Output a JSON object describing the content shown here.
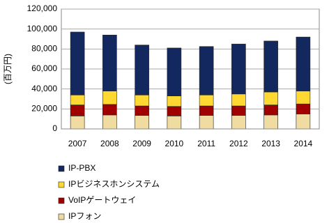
{
  "chart_data": {
    "type": "stacked-bar",
    "y_label": "(百万円)",
    "categories": [
      "2007",
      "2008",
      "2009",
      "2010",
      "2011",
      "2012",
      "2013",
      "2014"
    ],
    "series": [
      {
        "name": "IPフォン",
        "color": "#f0dca0",
        "values": [
          13000,
          14000,
          13500,
          13000,
          13500,
          13500,
          14000,
          15000
        ]
      },
      {
        "name": "VoIPゲートウェイ",
        "color": "#a00000",
        "values": [
          11000,
          10500,
          9500,
          9500,
          9500,
          9500,
          10000,
          10000
        ]
      },
      {
        "name": "IPビジネスホンシステム",
        "color": "#ffd932",
        "values": [
          10000,
          13500,
          11000,
          10500,
          11000,
          12000,
          13000,
          13000
        ]
      },
      {
        "name": "IP-PBX",
        "color": "#142860",
        "values": [
          63000,
          56000,
          50000,
          48000,
          48500,
          50000,
          51000,
          54000
        ]
      }
    ],
    "ylim": [
      0,
      120000
    ],
    "yticks": [
      0,
      {
        "value": 20000,
        "label": "20,000"
      },
      {
        "value": 40000,
        "label": "40,000"
      },
      {
        "value": 60000,
        "label": "60,000"
      },
      {
        "value": 80000,
        "label": "80,000"
      },
      {
        "value": 100000,
        "label": "100,000"
      },
      {
        "value": 120000,
        "label": "120,000"
      }
    ],
    "grid": true
  }
}
